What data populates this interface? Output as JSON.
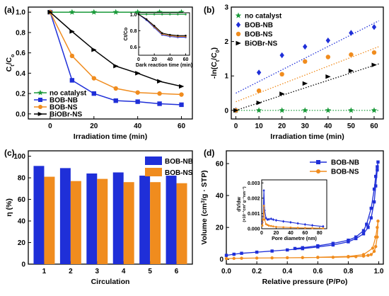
{
  "colors": {
    "green": "#1a9a3a",
    "blue": "#1f2fd8",
    "orange": "#f08c1e",
    "black": "#000000"
  },
  "chart_data": [
    {
      "panel": "(a)",
      "type": "line",
      "xlabel": "Irradiation time (min)",
      "ylabel": "C_t/C_o",
      "xlim": [
        -10,
        65
      ],
      "ylim": [
        -0.05,
        1.05
      ],
      "x_ticks": [
        "0",
        "20",
        "40",
        "60"
      ],
      "y_ticks": [
        "0.0",
        "0.2",
        "0.4",
        "0.6",
        "0.8",
        "1.0"
      ],
      "x": [
        0,
        10,
        20,
        30,
        40,
        50,
        60
      ],
      "series": [
        {
          "name": "no catalyst",
          "color": "green",
          "marker": "star",
          "values": [
            1.0,
            1.0,
            1.0,
            1.0,
            1.0,
            1.0,
            1.0
          ]
        },
        {
          "name": "BOB-NB",
          "color": "blue",
          "marker": "square",
          "values": [
            1.0,
            0.33,
            0.2,
            0.13,
            0.12,
            0.1,
            0.09
          ]
        },
        {
          "name": "BOB-NS",
          "color": "orange",
          "marker": "circle",
          "values": [
            1.0,
            0.57,
            0.35,
            0.25,
            0.21,
            0.2,
            0.19
          ]
        },
        {
          "name": "BiOBr-NS",
          "color": "black",
          "marker": "triangle",
          "values": [
            1.0,
            0.81,
            0.63,
            0.47,
            0.4,
            0.32,
            0.27
          ]
        }
      ],
      "legend_position": "bottom-left",
      "inset": {
        "xlabel": "Dark reaction time (min)",
        "ylabel": "C_t/C_o",
        "xlim": [
          0,
          65
        ],
        "ylim": [
          0.5,
          1.02
        ],
        "x_ticks": [
          "0",
          "20",
          "40",
          "60"
        ],
        "y_ticks": [
          "0.6",
          "0.8",
          "1.0"
        ],
        "x": [
          0,
          10,
          20,
          30,
          40,
          50,
          60
        ],
        "series": [
          {
            "color": "green",
            "values": [
              1.0,
              1.0,
              1.0,
              1.0,
              1.0,
              1.0,
              1.0
            ]
          },
          {
            "color": "blue",
            "values": [
              1.0,
              0.93,
              0.84,
              0.75,
              0.73,
              0.72,
              0.72
            ]
          },
          {
            "color": "orange",
            "values": [
              1.0,
              0.94,
              0.85,
              0.76,
              0.74,
              0.73,
              0.73
            ]
          },
          {
            "color": "black",
            "values": [
              1.0,
              0.94,
              0.86,
              0.77,
              0.75,
              0.74,
              0.74
            ]
          }
        ]
      }
    },
    {
      "panel": "(b)",
      "type": "scatter",
      "xlabel": "Irradiation time (min)",
      "ylabel": "-ln(C_t/C_0)",
      "xlim": [
        -2,
        64
      ],
      "ylim": [
        -0.25,
        3.0
      ],
      "x_ticks": [
        "0",
        "10",
        "20",
        "30",
        "40",
        "50",
        "60"
      ],
      "y_ticks": [
        "0",
        "1",
        "2",
        "3"
      ],
      "x": [
        0,
        10,
        20,
        30,
        40,
        50,
        60
      ],
      "series": [
        {
          "name": "no catalyst",
          "color": "green",
          "marker": "star",
          "values": [
            0,
            0,
            0,
            0,
            0,
            0,
            0
          ],
          "fit": [
            0,
            0
          ]
        },
        {
          "name": "BOB-NB",
          "color": "blue",
          "marker": "diamond",
          "values": [
            0,
            1.1,
            1.6,
            1.85,
            2.03,
            2.25,
            2.42
          ],
          "fit": [
            0.5,
            2.6
          ]
        },
        {
          "name": "BOB-NS",
          "color": "orange",
          "marker": "circle",
          "values": [
            0,
            0.57,
            1.05,
            1.42,
            1.55,
            1.62,
            1.68
          ],
          "fit": [
            0.25,
            1.85
          ]
        },
        {
          "name": "BiOBr-NS",
          "color": "black",
          "marker": "triangle",
          "values": [
            0,
            0.22,
            0.48,
            0.78,
            0.98,
            1.15,
            1.32
          ],
          "fit": [
            0.0,
            1.35
          ]
        }
      ],
      "legend_position": "top-left"
    },
    {
      "panel": "(c)",
      "type": "bar",
      "xlabel": "Circulation",
      "ylabel": "η (%)",
      "ylim": [
        0,
        105
      ],
      "y_ticks": [
        "0",
        "20",
        "40",
        "60",
        "80",
        "100"
      ],
      "categories": [
        "1",
        "2",
        "3",
        "4",
        "5",
        "6"
      ],
      "series": [
        {
          "name": "BOB-NB",
          "color": "blue",
          "values": [
            91,
            89,
            84,
            85,
            82,
            82
          ]
        },
        {
          "name": "BOB-NS",
          "color": "orange",
          "values": [
            81,
            77,
            79,
            76,
            76,
            75
          ]
        }
      ],
      "legend_position": "top-right"
    },
    {
      "panel": "(d)",
      "type": "line",
      "xlabel": "Relative pressure (P/Po)",
      "ylabel": "Volume (cm³/g · STP)",
      "xlim": [
        0,
        1.03
      ],
      "ylim": [
        -3,
        68
      ],
      "x_ticks": [
        "0.0",
        "0.2",
        "0.4",
        "0.6",
        "0.8",
        "1.0"
      ],
      "y_ticks": [
        "0",
        "20",
        "40",
        "60"
      ],
      "series": [
        {
          "name": "BOB-NB",
          "color": "blue",
          "marker": "square",
          "x": [
            0.0,
            0.05,
            0.1,
            0.2,
            0.3,
            0.4,
            0.5,
            0.6,
            0.7,
            0.8,
            0.85,
            0.9,
            0.93,
            0.95,
            0.97,
            0.98,
            0.99,
            0.995,
            0.99,
            0.98,
            0.97,
            0.95,
            0.92,
            0.9,
            0.85,
            0.8,
            0.7,
            0.6,
            0.5,
            0.45
          ],
          "values": [
            2.5,
            3.2,
            3.8,
            4.5,
            5.2,
            5.9,
            6.7,
            7.8,
            9.0,
            11.0,
            13.0,
            16.0,
            20.0,
            26.0,
            36.0,
            46.0,
            56.0,
            61.0,
            58.0,
            52.0,
            44.0,
            32.0,
            22.0,
            18.0,
            14.0,
            12.0,
            10.0,
            8.5,
            7.3,
            6.8
          ]
        },
        {
          "name": "BOB-NS",
          "color": "orange",
          "marker": "circle",
          "x": [
            0.0,
            0.05,
            0.1,
            0.2,
            0.3,
            0.4,
            0.5,
            0.6,
            0.7,
            0.8,
            0.85,
            0.9,
            0.93,
            0.95,
            0.97,
            0.98,
            0.99,
            0.995,
            0.99,
            0.98,
            0.96,
            0.9,
            0.8,
            0.6
          ],
          "values": [
            0.5,
            0.6,
            0.7,
            0.8,
            0.9,
            1.0,
            1.1,
            1.2,
            1.3,
            1.5,
            1.7,
            2.0,
            2.5,
            3.0,
            5.0,
            8.0,
            14.0,
            24.0,
            20.0,
            14.0,
            7.0,
            3.0,
            1.8,
            1.3
          ]
        }
      ],
      "legend_position": "top-right",
      "inset": {
        "xlabel": "Pore diametre (nm)",
        "ylabel": "dV/dw (×10⁻³ cm³ g⁻¹ nm⁻¹)",
        "xlim": [
          0,
          90
        ],
        "ylim": [
          0,
          0.0032
        ],
        "x_ticks": [
          "0",
          "20",
          "40",
          "60",
          "80"
        ],
        "y_ticks": [
          "0.000",
          "0.001",
          "0.002",
          "0.003"
        ],
        "series": [
          {
            "color": "blue",
            "x": [
              1,
              2,
              3,
              4,
              6,
              8,
              10,
              13,
              16,
              20,
              30,
              40,
              50,
              60,
              70,
              85
            ],
            "values": [
              0.0004,
              0.0008,
              0.0025,
              0.0012,
              0.0007,
              0.0006,
              0.00062,
              0.00065,
              0.0006,
              0.00055,
              0.00048,
              0.00042,
              0.00035,
              0.00028,
              0.00022,
              0.00015
            ]
          },
          {
            "color": "orange",
            "x": [
              1,
              2,
              3,
              4,
              6,
              8,
              10,
              13,
              16,
              20,
              30,
              40,
              50,
              60,
              70,
              85
            ],
            "values": [
              0.0002,
              0.0006,
              0.0015,
              0.0006,
              0.0003,
              0.00025,
              0.0002,
              0.00018,
              0.00015,
              0.00012,
              0.0001,
              8e-05,
              6e-05,
              5e-05,
              4e-05,
              3e-05
            ]
          }
        ]
      }
    }
  ]
}
